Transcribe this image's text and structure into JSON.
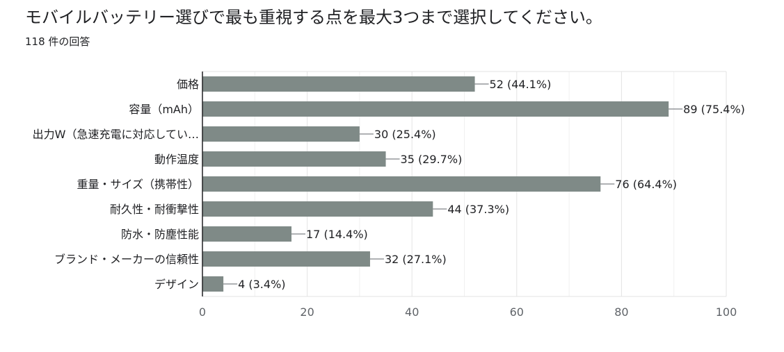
{
  "question_title": "モバイルバッテリー選びで最も重視する点を最大3つまで選択してください。",
  "response_count": "118 件の回答",
  "chart_data": {
    "type": "bar",
    "orientation": "horizontal",
    "categories": [
      "価格",
      "容量（mAh）",
      "出力W（急速充電に対応してい…",
      "動作温度",
      "重量・サイズ（携帯性）",
      "耐久性・耐衝撃性",
      "防水・防塵性能",
      "ブランド・メーカーの信頼性",
      "デザイン"
    ],
    "values": [
      52,
      89,
      30,
      35,
      76,
      44,
      17,
      32,
      4
    ],
    "data_labels": [
      "52 (44.1%)",
      "89 (75.4%)",
      "30 (25.4%)",
      "35 (29.7%)",
      "76 (64.4%)",
      "44 (37.3%)",
      "17 (14.4%)",
      "32 (27.1%)",
      "4 (3.4%)"
    ],
    "xlim": [
      0,
      100
    ],
    "xticks": [
      "0",
      "20",
      "40",
      "60",
      "80",
      "100"
    ],
    "grid": true,
    "bar_color": "#7f8a87"
  }
}
